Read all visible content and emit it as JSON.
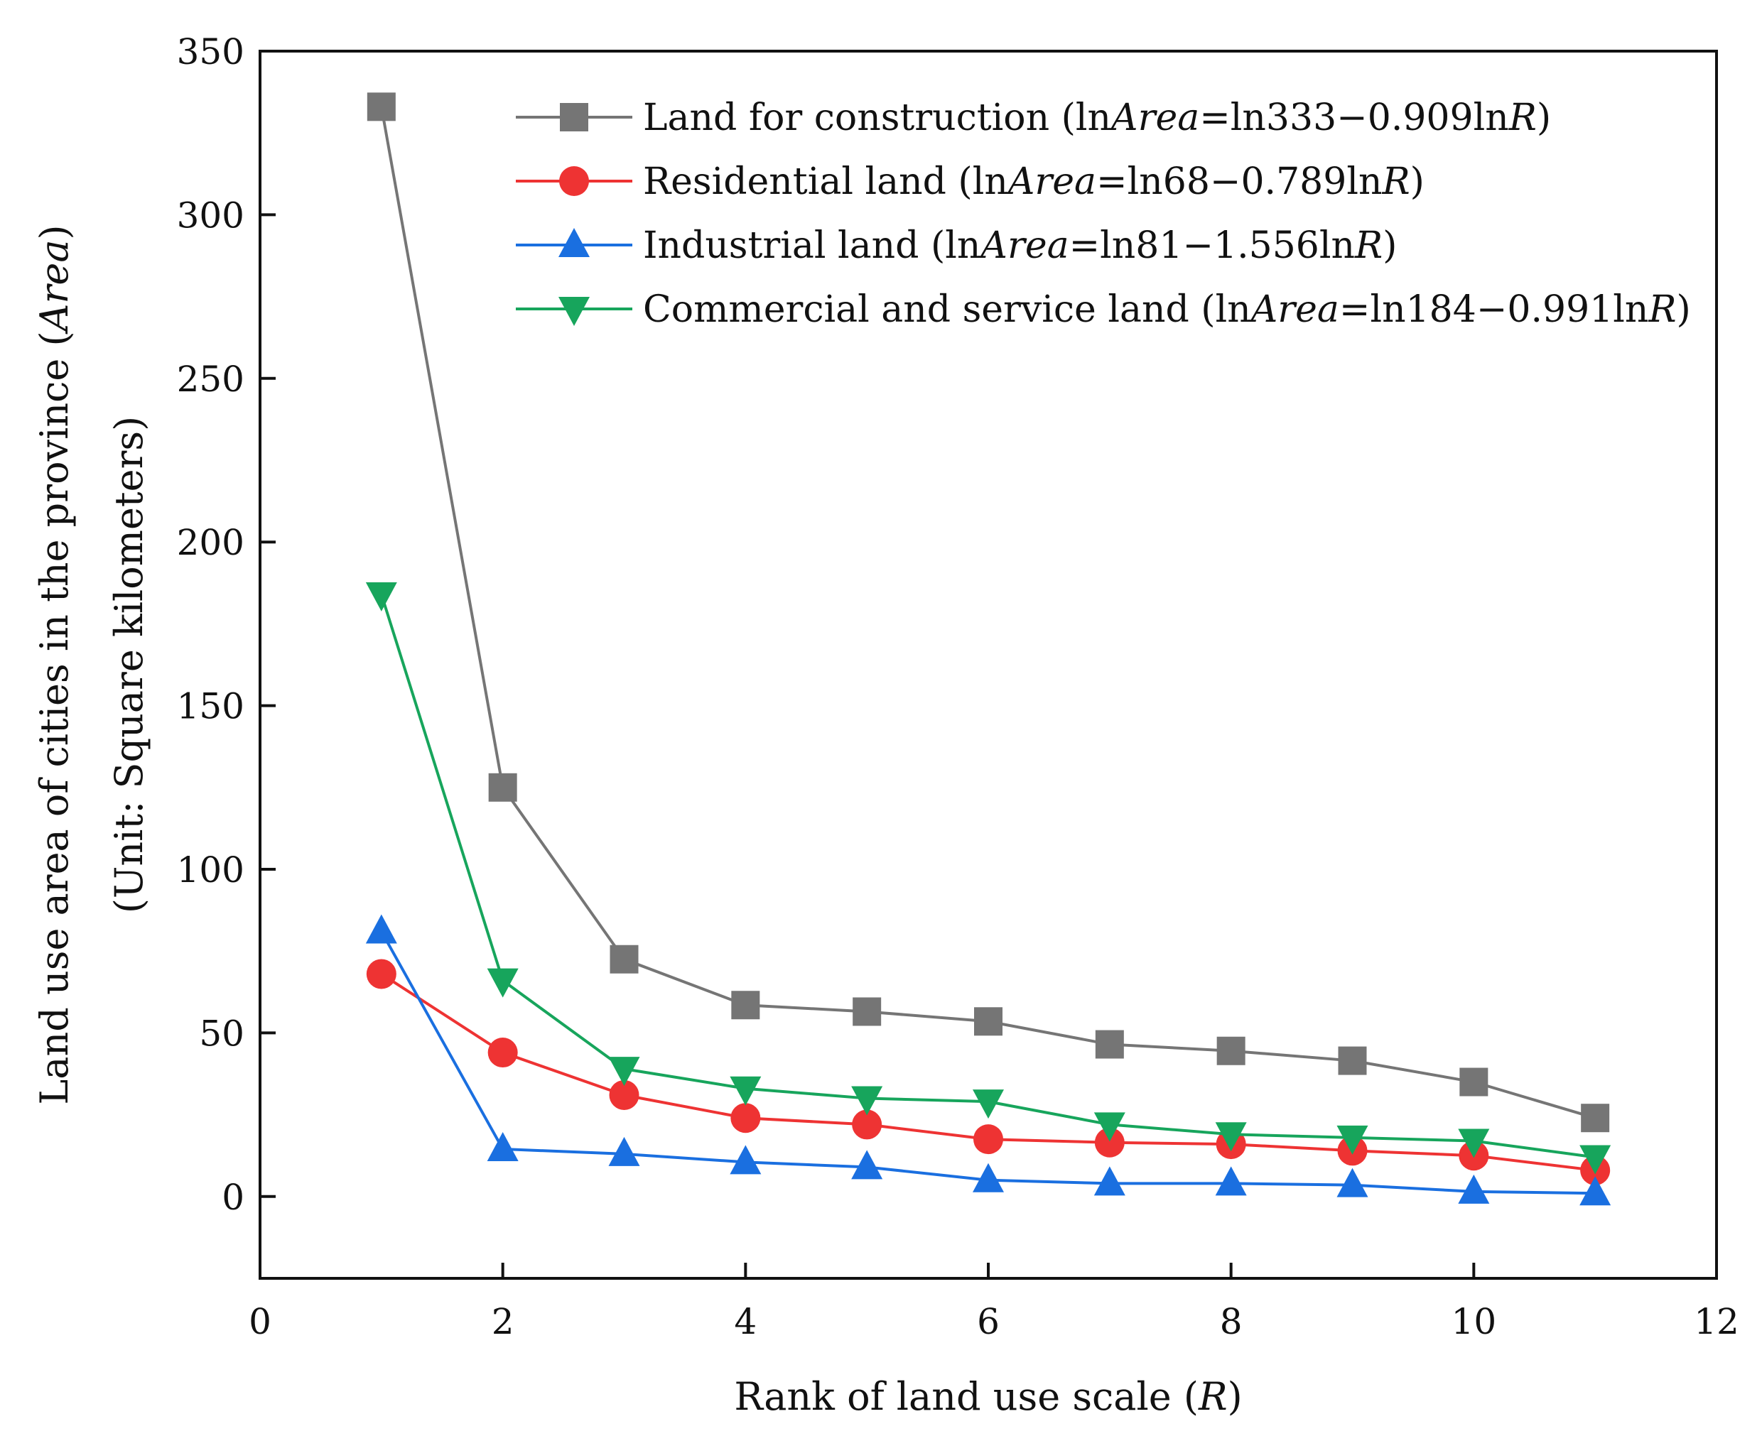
{
  "chart_data": {
    "type": "line",
    "title": "",
    "xlabel": {
      "text": "Rank of land use scale (",
      "italic": "R",
      "tail": ")"
    },
    "ylabel_line1": {
      "text": "Land use area of cities in the province (",
      "italic": "Area",
      "tail": ")"
    },
    "ylabel_line2": "(Unit: Square kilometers)",
    "xlim": [
      0,
      12
    ],
    "ylim": [
      -25,
      350
    ],
    "xticks": [
      0,
      2,
      4,
      6,
      8,
      10,
      12
    ],
    "yticks": [
      0,
      50,
      100,
      150,
      200,
      250,
      300,
      350
    ],
    "x": [
      1,
      2,
      3,
      4,
      5,
      6,
      7,
      8,
      9,
      10,
      11
    ],
    "legend_position": "top-right",
    "series": [
      {
        "name": "Land for construction",
        "eq_pre": "ln",
        "eq_var": "Area",
        "eq_mid": "=ln333−0.909ln",
        "eq_r": "R",
        "eq_end": ")",
        "color": "#757575",
        "marker": "square",
        "values": [
          333,
          125,
          72.5,
          58.5,
          56.5,
          53.5,
          46.5,
          44.5,
          41.5,
          35,
          24
        ]
      },
      {
        "name": "Residential land",
        "eq_pre": "ln",
        "eq_var": "Area",
        "eq_mid": "=ln68−0.789ln",
        "eq_r": "R",
        "eq_end": ")",
        "color": "#ee3333",
        "marker": "circle",
        "values": [
          68,
          44,
          31,
          24,
          22,
          17.5,
          16.5,
          16,
          14,
          12.5,
          8
        ]
      },
      {
        "name": "Industrial land",
        "eq_pre": "ln",
        "eq_var": "Area",
        "eq_mid": "=ln81−1.556ln",
        "eq_r": "R",
        "eq_end": ")",
        "color": "#1a6fe0",
        "marker": "triangle-up",
        "values": [
          81,
          14.5,
          13,
          10.5,
          9,
          5,
          4,
          4,
          3.5,
          1.5,
          1
        ]
      },
      {
        "name": "Commercial and service land",
        "eq_pre": "ln",
        "eq_var": "Area",
        "eq_mid": "=ln184−0.991ln",
        "eq_r": "R",
        "eq_end": ")",
        "color": "#17a55c",
        "marker": "triangle-down",
        "values": [
          184,
          66,
          39,
          33,
          30,
          29,
          22,
          19,
          18,
          17,
          12
        ]
      }
    ]
  }
}
